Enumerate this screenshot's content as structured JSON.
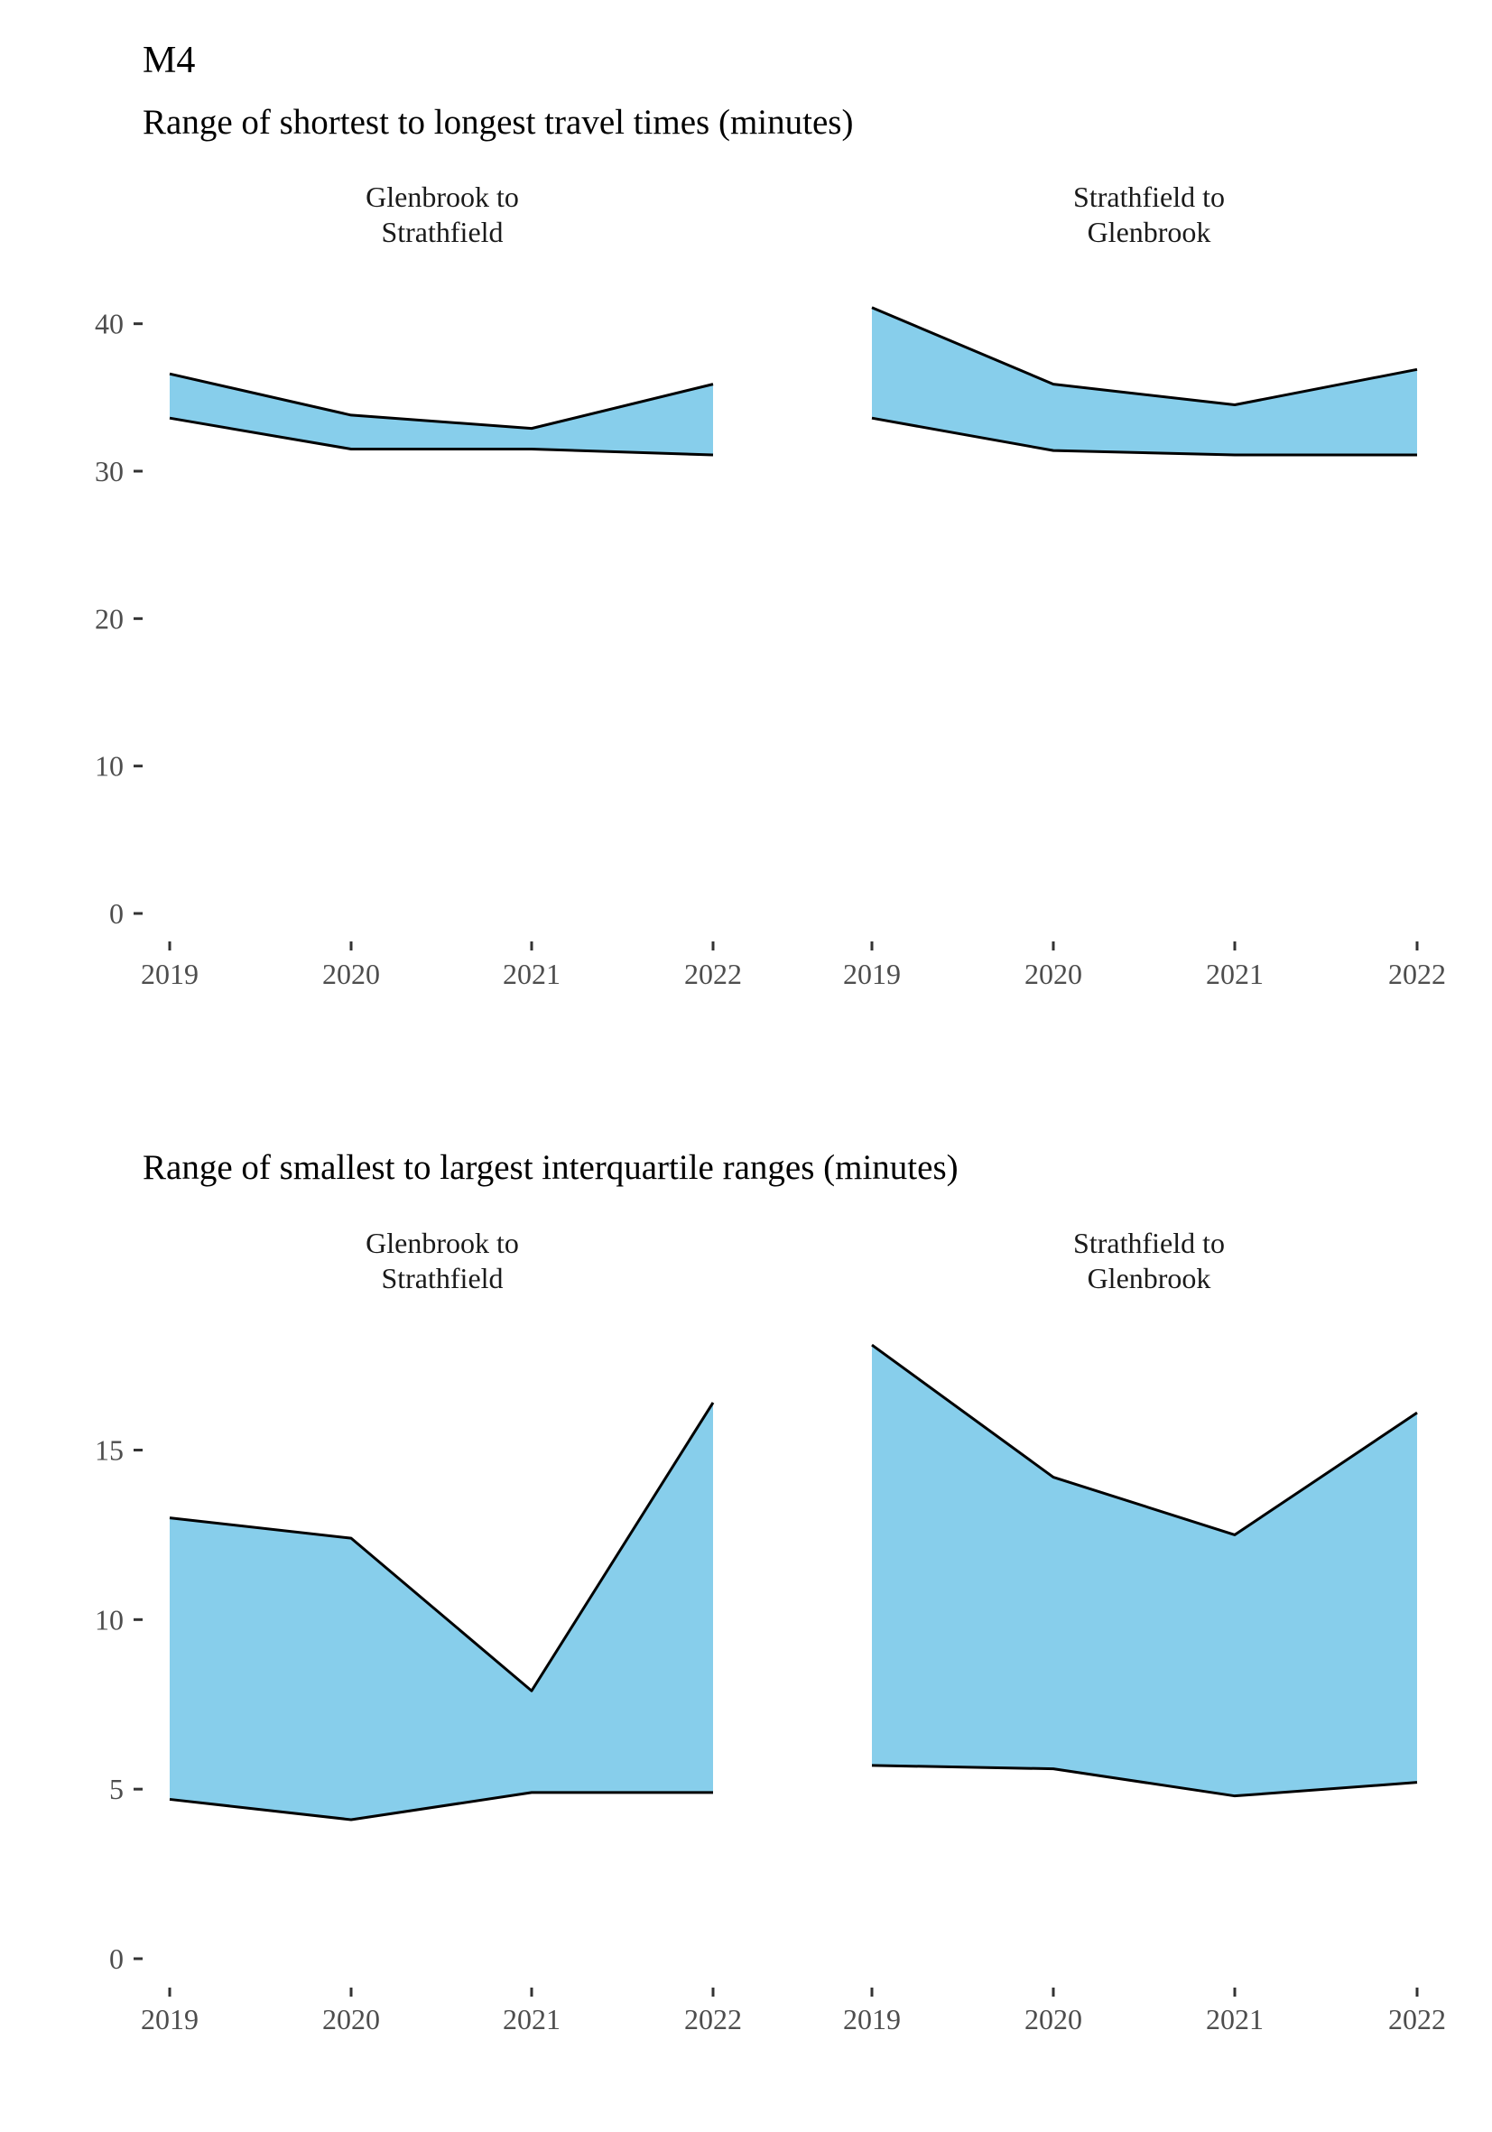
{
  "page_title": "M4",
  "colors": {
    "band_fill": "#87CEEB",
    "line": "#000000",
    "tick_text": "#4d4d4d"
  },
  "chart_data": [
    {
      "type": "area",
      "title": "Range of shortest to longest travel times (minutes)",
      "xlabel": "",
      "ylabel": "",
      "x": [
        "2019",
        "2020",
        "2021",
        "2022"
      ],
      "ylim": [
        0,
        42
      ],
      "yticks": [
        0,
        10,
        20,
        30,
        40
      ],
      "grid": false,
      "panels": [
        {
          "label": "Glenbrook to\nStrathfield",
          "label_lines": [
            "Glenbrook to",
            "Strathfield"
          ],
          "lower": [
            33.6,
            31.5,
            31.5,
            31.1
          ],
          "upper": [
            36.6,
            33.8,
            32.9,
            35.9
          ]
        },
        {
          "label": "Strathfield to\nGlenbrook",
          "label_lines": [
            "Strathfield to",
            "Glenbrook"
          ],
          "lower": [
            33.6,
            31.4,
            31.1,
            31.1
          ],
          "upper": [
            41.1,
            35.9,
            34.5,
            36.9
          ]
        }
      ]
    },
    {
      "type": "area",
      "title": "Range of smallest to largest interquartile ranges (minutes)",
      "xlabel": "",
      "ylabel": "",
      "x": [
        "2019",
        "2020",
        "2021",
        "2022"
      ],
      "ylim": [
        0,
        18.5
      ],
      "yticks": [
        0,
        5,
        10,
        15
      ],
      "grid": false,
      "panels": [
        {
          "label": "Glenbrook to\nStrathfield",
          "label_lines": [
            "Glenbrook to",
            "Strathfield"
          ],
          "lower": [
            4.7,
            4.1,
            4.9,
            4.9
          ],
          "upper": [
            13.0,
            12.4,
            7.9,
            16.4
          ]
        },
        {
          "label": "Strathfield to\nGlenbrook",
          "label_lines": [
            "Strathfield to",
            "Glenbrook"
          ],
          "lower": [
            5.7,
            5.6,
            4.8,
            5.2
          ],
          "upper": [
            18.1,
            14.2,
            12.5,
            16.1
          ]
        }
      ]
    }
  ]
}
